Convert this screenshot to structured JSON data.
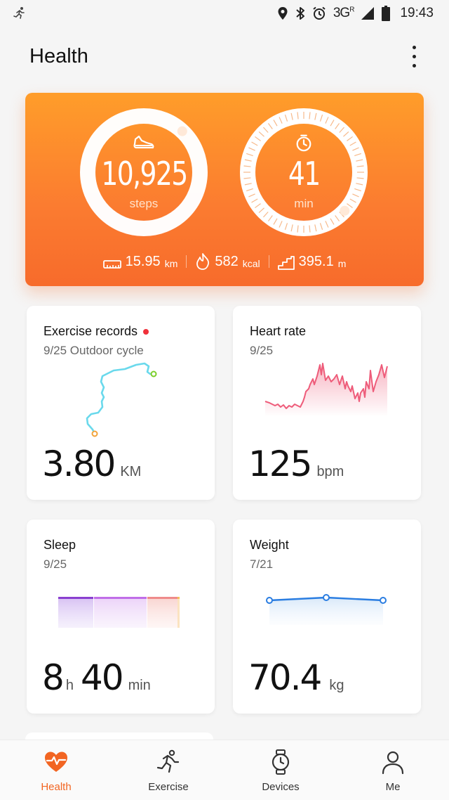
{
  "status_bar": {
    "network": "3G",
    "network_badge": "R",
    "time": "19:43",
    "icons": [
      "running-notification-icon",
      "location-icon",
      "bluetooth-icon",
      "alarm-icon",
      "signal-icon",
      "battery-icon"
    ]
  },
  "header": {
    "title": "Health"
  },
  "summary": {
    "steps_value": "10,925",
    "steps_unit": "steps",
    "steps_progress": 0.97,
    "time_value": "41",
    "time_unit": "min",
    "time_progress": 0.37,
    "distance_value": "15.95",
    "distance_unit": "km",
    "calories_value": "582",
    "calories_unit": "kcal",
    "climb_value": "395.1",
    "climb_unit": "m"
  },
  "cards": {
    "exercise": {
      "title": "Exercise records",
      "subtitle": "9/25 Outdoor cycle",
      "value": "3.80",
      "unit": "KM"
    },
    "heart": {
      "title": "Heart rate",
      "subtitle": "9/25",
      "value": "125",
      "unit": "bpm"
    },
    "sleep": {
      "title": "Sleep",
      "subtitle": "9/25",
      "hours": "8",
      "hours_unit": "h",
      "minutes": "40",
      "minutes_unit": "min"
    },
    "weight": {
      "title": "Weight",
      "subtitle": "7/21",
      "value": "70.4",
      "unit": "kg"
    }
  },
  "nav": [
    {
      "label": "Health",
      "active": true
    },
    {
      "label": "Exercise",
      "active": false
    },
    {
      "label": "Devices",
      "active": false
    },
    {
      "label": "Me",
      "active": false
    }
  ],
  "colors": {
    "accent": "#f26522",
    "hero_top": "#ff9d2a",
    "hero_bottom": "#f76b2b",
    "route": "#6ad9ec",
    "heart": "#ee5c7a",
    "weight_line": "#2a7de1",
    "sleep_deep": "#8a3fd0",
    "sleep_light": "#c06ee8",
    "sleep_awake": "#ef8b8b"
  }
}
